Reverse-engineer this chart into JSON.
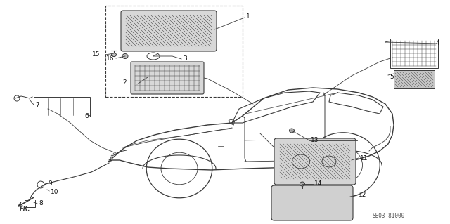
{
  "bg_color": "#ffffff",
  "line_color": "#3a3a3a",
  "diagram_code": "SE03-81000",
  "fig_w": 6.4,
  "fig_h": 3.19,
  "dpi": 100
}
